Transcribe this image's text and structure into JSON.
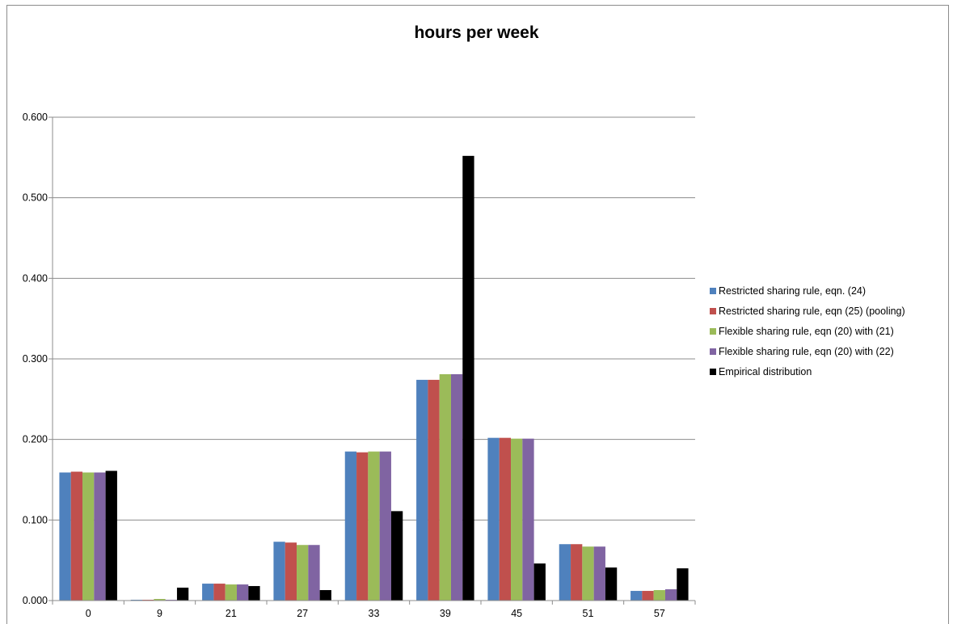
{
  "chart_data": {
    "type": "bar",
    "title": "hours per week",
    "xlabel": "",
    "ylabel": "",
    "categories": [
      "0",
      "9",
      "21",
      "27",
      "33",
      "39",
      "45",
      "51",
      "57"
    ],
    "ylim": [
      0,
      0.6
    ],
    "yticks": [
      "0.000",
      "0.100",
      "0.200",
      "0.300",
      "0.400",
      "0.500",
      "0.600"
    ],
    "grid": true,
    "legend_position": "right",
    "series": [
      {
        "name": "Restricted sharing rule, eqn. (24)",
        "color": "#4f81bd",
        "values": [
          0.159,
          0.001,
          0.021,
          0.073,
          0.185,
          0.274,
          0.202,
          0.07,
          0.012
        ]
      },
      {
        "name": "Restricted sharing rule, eqn (25) (pooling)",
        "color": "#c0504d",
        "values": [
          0.16,
          0.001,
          0.021,
          0.072,
          0.184,
          0.274,
          0.202,
          0.07,
          0.012
        ]
      },
      {
        "name": "Flexible sharing rule, eqn (20) with (21)",
        "color": "#9bbb59",
        "values": [
          0.159,
          0.002,
          0.02,
          0.069,
          0.185,
          0.281,
          0.201,
          0.067,
          0.013
        ]
      },
      {
        "name": "Flexible sharing rule, eqn (20) with (22)",
        "color": "#8064a2",
        "values": [
          0.159,
          0.001,
          0.02,
          0.069,
          0.185,
          0.281,
          0.201,
          0.067,
          0.014
        ]
      },
      {
        "name": "Empirical distribution",
        "color": "#000000",
        "values": [
          0.161,
          0.016,
          0.018,
          0.013,
          0.111,
          0.552,
          0.046,
          0.041,
          0.04
        ]
      }
    ]
  }
}
